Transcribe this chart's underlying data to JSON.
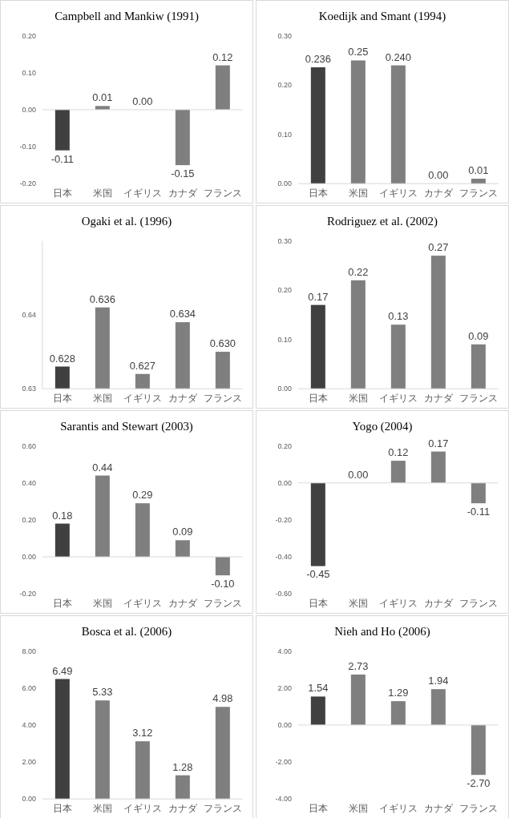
{
  "chart_data": [
    {
      "type": "bar",
      "title": "Campbell and Mankiw (1991)",
      "categories": [
        "日本",
        "米国",
        "イギリス",
        "カナダ",
        "フランス"
      ],
      "values": [
        -0.11,
        0.01,
        0.0,
        -0.15,
        0.12
      ],
      "value_labels": [
        "-0.11",
        "0.01",
        "0.00",
        "-0.15",
        "0.12"
      ],
      "colors": [
        "#404040",
        "#7f7f7f",
        "#7f7f7f",
        "#7f7f7f",
        "#7f7f7f"
      ],
      "ylim": [
        -0.2,
        0.2
      ],
      "yticks": [
        {
          "value": -0.2,
          "label": "-0.20"
        },
        {
          "value": -0.1,
          "label": "-0.10"
        },
        {
          "value": 0,
          "label": "0.00"
        },
        {
          "value": 0.1,
          "label": "0.10"
        },
        {
          "value": 0.2,
          "label": "0.20"
        }
      ]
    },
    {
      "type": "bar",
      "title": "Koedijk and Smant (1994)",
      "categories": [
        "日本",
        "米国",
        "イギリス",
        "カナダ",
        "フランス"
      ],
      "values": [
        0.236,
        0.25,
        0.24,
        0.0,
        0.01
      ],
      "value_labels": [
        "0.236",
        "0.25",
        "0.240",
        "0.00",
        "0.01"
      ],
      "colors": [
        "#404040",
        "#7f7f7f",
        "#7f7f7f",
        "#7f7f7f",
        "#7f7f7f"
      ],
      "ylim": [
        0,
        0.3
      ],
      "yticks": [
        {
          "value": 0,
          "label": "0.00"
        },
        {
          "value": 0.1,
          "label": "0.10"
        },
        {
          "value": 0.2,
          "label": "0.20"
        },
        {
          "value": 0.3,
          "label": "0.30"
        }
      ]
    },
    {
      "type": "bar",
      "title": "Ogaki  et al. (1996)",
      "categories": [
        "日本",
        "米国",
        "イギリス",
        "カナダ",
        "フランス"
      ],
      "values": [
        0.628,
        0.636,
        0.627,
        0.634,
        0.63
      ],
      "value_labels": [
        "0.628",
        "0.636",
        "0.627",
        "0.634",
        "0.630"
      ],
      "colors": [
        "#404040",
        "#7f7f7f",
        "#7f7f7f",
        "#7f7f7f",
        "#7f7f7f"
      ],
      "ylim": [
        0.625,
        0.645
      ],
      "yticks": [
        {
          "value": 0.625,
          "label": "0.63"
        },
        {
          "value": 0.635,
          "label": "0.64"
        }
      ]
    },
    {
      "type": "bar",
      "title": "Rodriguez  et al. (2002)",
      "categories": [
        "日本",
        "米国",
        "イギリス",
        "カナダ",
        "フランス"
      ],
      "values": [
        0.17,
        0.22,
        0.13,
        0.27,
        0.09
      ],
      "value_labels": [
        "0.17",
        "0.22",
        "0.13",
        "0.27",
        "0.09"
      ],
      "colors": [
        "#404040",
        "#7f7f7f",
        "#7f7f7f",
        "#7f7f7f",
        "#7f7f7f"
      ],
      "ylim": [
        0,
        0.3
      ],
      "yticks": [
        {
          "value": 0,
          "label": "0.00"
        },
        {
          "value": 0.1,
          "label": "0.10"
        },
        {
          "value": 0.2,
          "label": "0.20"
        },
        {
          "value": 0.3,
          "label": "0.30"
        }
      ]
    },
    {
      "type": "bar",
      "title": "Sarantis and Stewart (2003)",
      "categories": [
        "日本",
        "米国",
        "イギリス",
        "カナダ",
        "フランス"
      ],
      "values": [
        0.18,
        0.44,
        0.29,
        0.09,
        -0.1
      ],
      "value_labels": [
        "0.18",
        "0.44",
        "0.29",
        "0.09",
        "-0.10"
      ],
      "colors": [
        "#404040",
        "#7f7f7f",
        "#7f7f7f",
        "#7f7f7f",
        "#7f7f7f"
      ],
      "ylim": [
        -0.2,
        0.6
      ],
      "yticks": [
        {
          "value": -0.2,
          "label": "-0.20"
        },
        {
          "value": 0,
          "label": "0.00"
        },
        {
          "value": 0.2,
          "label": "0.20"
        },
        {
          "value": 0.4,
          "label": "0.40"
        },
        {
          "value": 0.6,
          "label": "0.60"
        }
      ]
    },
    {
      "type": "bar",
      "title": "Yogo (2004)",
      "categories": [
        "日本",
        "米国",
        "イギリス",
        "カナダ",
        "フランス"
      ],
      "values": [
        -0.45,
        0.0,
        0.12,
        0.17,
        -0.11
      ],
      "value_labels": [
        "-0.45",
        "0.00",
        "0.12",
        "0.17",
        "-0.11"
      ],
      "colors": [
        "#404040",
        "#7f7f7f",
        "#7f7f7f",
        "#7f7f7f",
        "#7f7f7f"
      ],
      "ylim": [
        -0.6,
        0.2
      ],
      "yticks": [
        {
          "value": -0.6,
          "label": "-0.60"
        },
        {
          "value": -0.4,
          "label": "-0.40"
        },
        {
          "value": -0.2,
          "label": "-0.20"
        },
        {
          "value": 0,
          "label": "0.00"
        },
        {
          "value": 0.2,
          "label": "0.20"
        }
      ]
    },
    {
      "type": "bar",
      "title": "Bosca  et al. (2006)",
      "categories": [
        "日本",
        "米国",
        "イギリス",
        "カナダ",
        "フランス"
      ],
      "values": [
        6.49,
        5.33,
        3.12,
        1.28,
        4.98
      ],
      "value_labels": [
        "6.49",
        "5.33",
        "3.12",
        "1.28",
        "4.98"
      ],
      "colors": [
        "#404040",
        "#7f7f7f",
        "#7f7f7f",
        "#7f7f7f",
        "#7f7f7f"
      ],
      "ylim": [
        0,
        8
      ],
      "yticks": [
        {
          "value": 0,
          "label": "0.00"
        },
        {
          "value": 2,
          "label": "2.00"
        },
        {
          "value": 4,
          "label": "4.00"
        },
        {
          "value": 6,
          "label": "6.00"
        },
        {
          "value": 8,
          "label": "8.00"
        }
      ]
    },
    {
      "type": "bar",
      "title": "Nieh and Ho (2006)",
      "categories": [
        "日本",
        "米国",
        "イギリス",
        "カナダ",
        "フランス"
      ],
      "values": [
        1.54,
        2.73,
        1.29,
        1.94,
        -2.7
      ],
      "value_labels": [
        "1.54",
        "2.73",
        "1.29",
        "1.94",
        "-2.70"
      ],
      "colors": [
        "#404040",
        "#7f7f7f",
        "#7f7f7f",
        "#7f7f7f",
        "#7f7f7f"
      ],
      "ylim": [
        -4,
        4
      ],
      "yticks": [
        {
          "value": -4,
          "label": "-4.00"
        },
        {
          "value": -2,
          "label": "-2.00"
        },
        {
          "value": 0,
          "label": "0.00"
        },
        {
          "value": 2,
          "label": "2.00"
        },
        {
          "value": 4,
          "label": "4.00"
        }
      ]
    }
  ]
}
